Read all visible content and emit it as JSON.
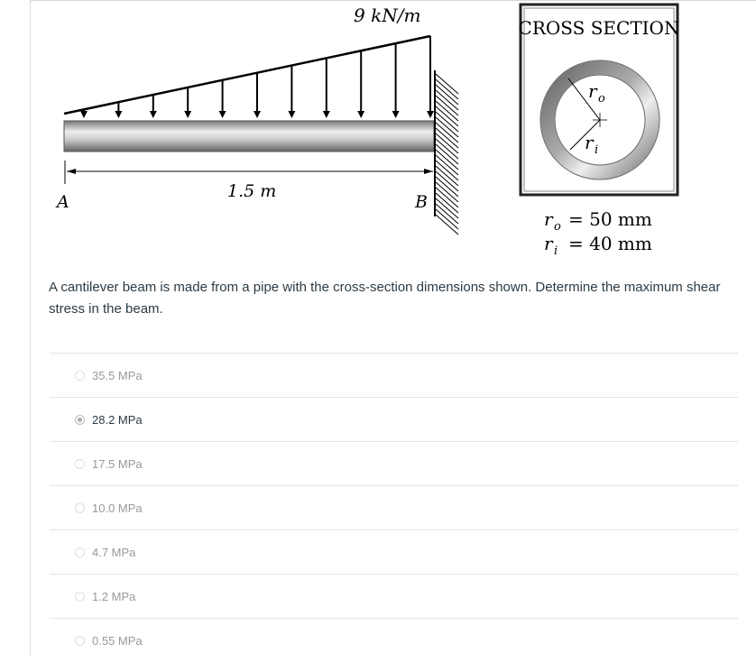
{
  "figure": {
    "load_label": "9 kN/m",
    "length_label": "1.5 m",
    "point_a": "A",
    "point_b": "B",
    "cross_section_title": "CROSS SECTION",
    "ro_symbol": "r",
    "ro_sub": "o",
    "ri_symbol": "r",
    "ri_sub": "i",
    "ro_value": "= 50 mm",
    "ri_value": "= 40 mm"
  },
  "question": "A cantilever beam is made from a pipe with the cross-section dimensions shown.   Determine the maximum shear stress in the beam.",
  "options": [
    {
      "label": "35.5 MPa",
      "selected": false
    },
    {
      "label": "28.2 MPa",
      "selected": true
    },
    {
      "label": "17.5 MPa",
      "selected": false
    },
    {
      "label": "10.0 MPa",
      "selected": false
    },
    {
      "label": "4.7 MPa",
      "selected": false
    },
    {
      "label": "1.2 MPa",
      "selected": false
    },
    {
      "label": "0.55 MPa",
      "selected": false
    }
  ]
}
